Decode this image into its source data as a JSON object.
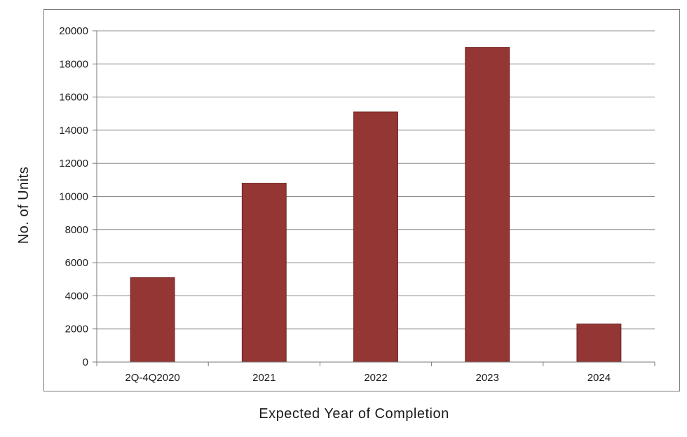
{
  "chart_data": {
    "type": "bar",
    "categories": [
      "2Q-4Q2020",
      "2021",
      "2022",
      "2023",
      "2024"
    ],
    "values": [
      5100,
      10800,
      15100,
      19000,
      2300
    ],
    "xlabel": "Expected Year of Completion",
    "ylabel": "No. of Units",
    "ylim": [
      0,
      20000
    ],
    "yticks": [
      "0",
      "2000",
      "4000",
      "6000",
      "8000",
      "10000",
      "12000",
      "14000",
      "16000",
      "18000",
      "20000"
    ],
    "grid": true,
    "legend": "none",
    "colors": {
      "bar": "#943634",
      "bar_border": "#6e2422",
      "grid": "#8c8c8c",
      "axis": "#7a7a7a"
    }
  }
}
